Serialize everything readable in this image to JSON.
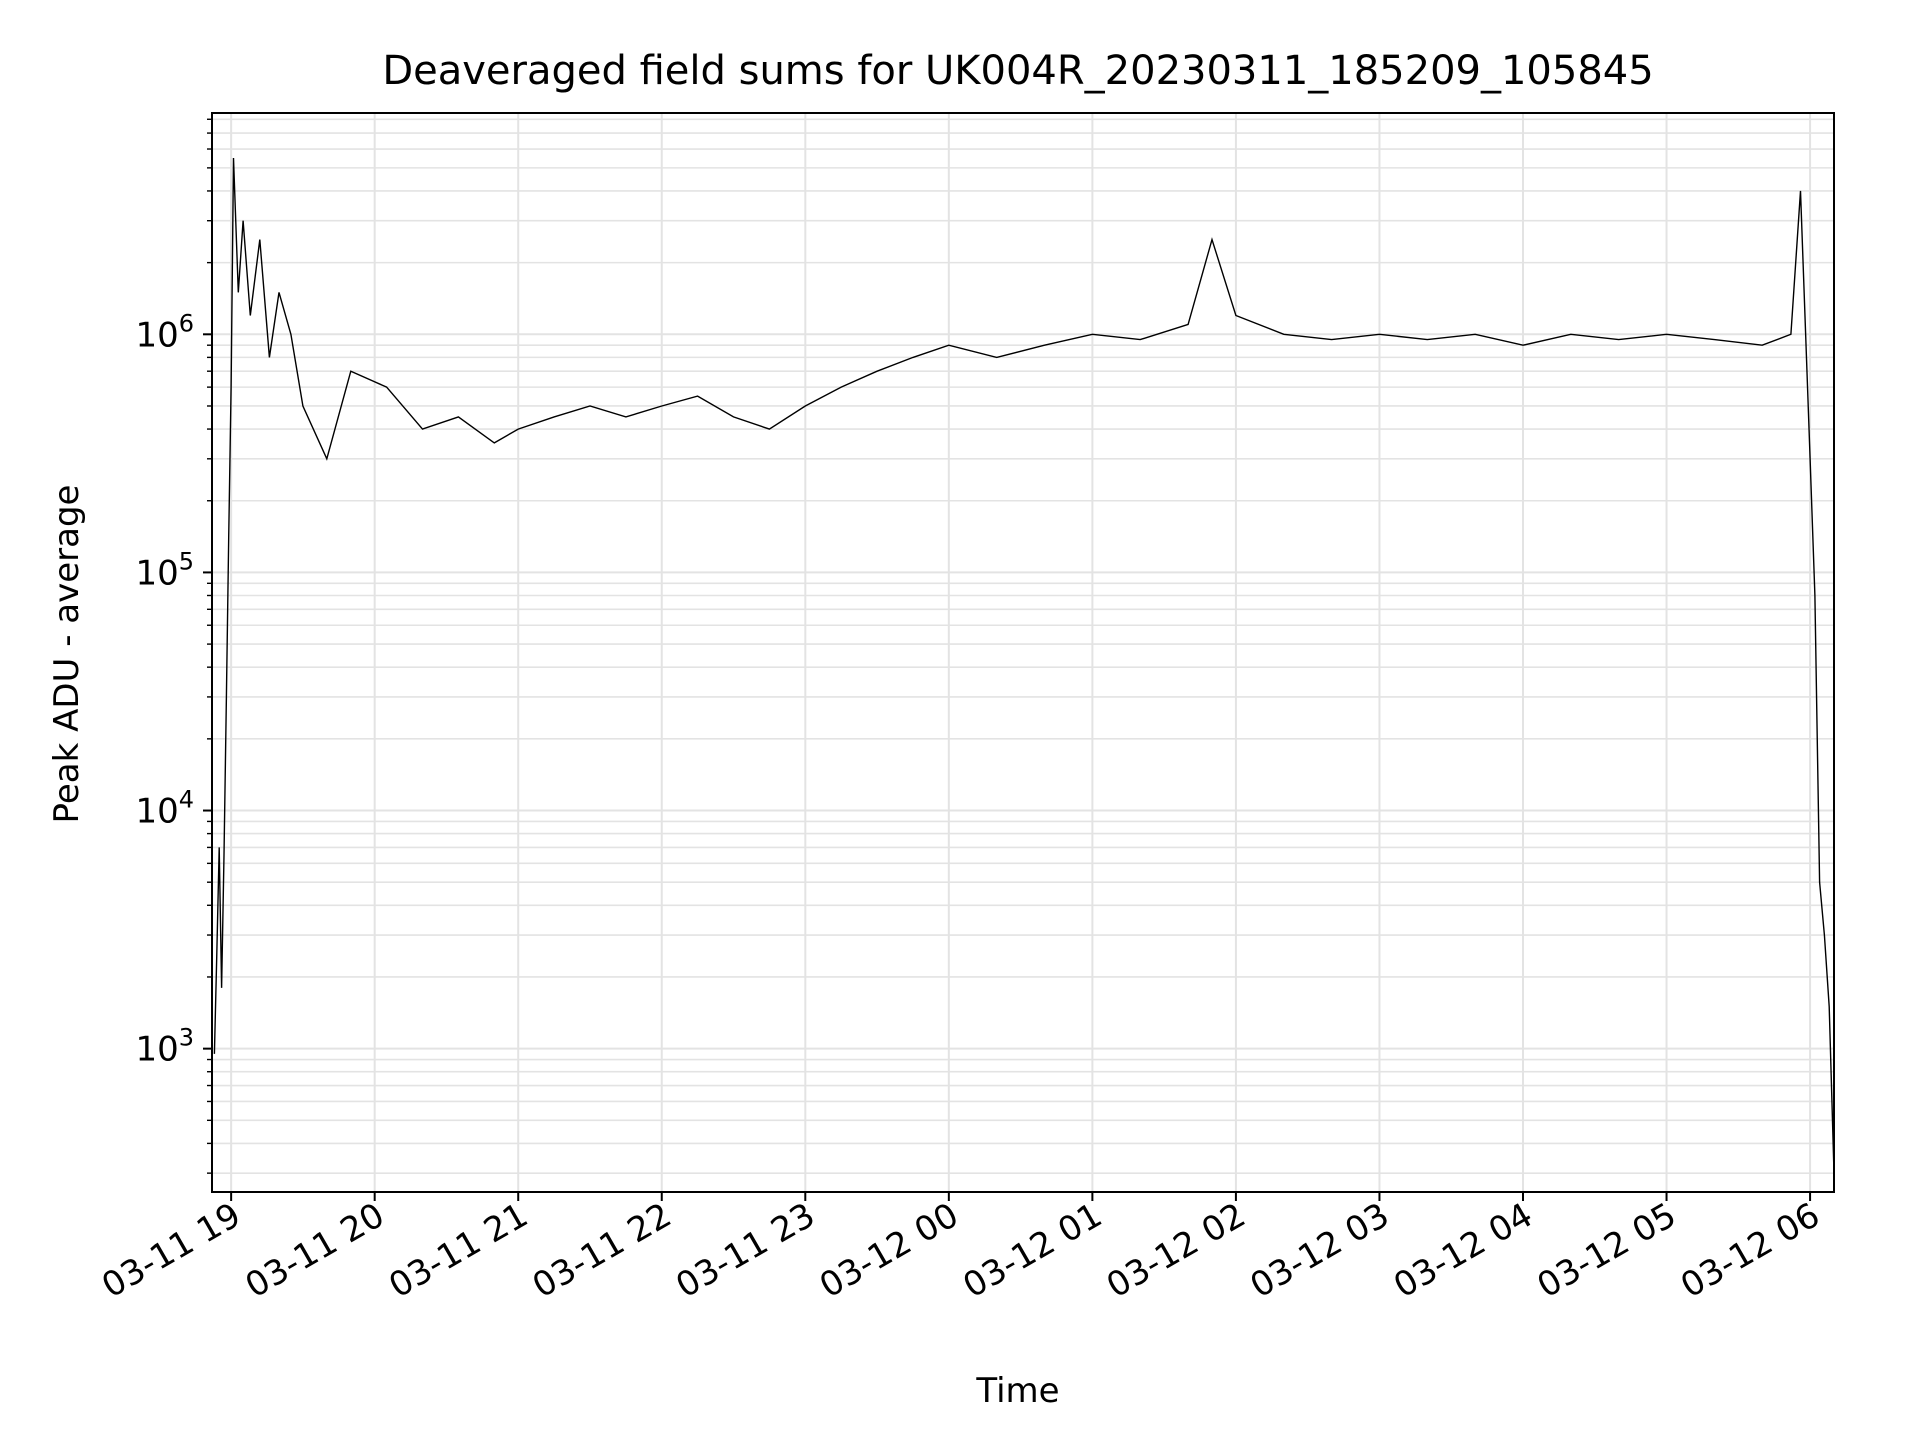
{
  "chart_data": {
    "type": "line",
    "title": "Deaveraged field sums for UK004R_20230311_185209_105845",
    "xlabel": "Time",
    "ylabel": "Peak ADU - average",
    "xlim": [
      "2023-03-11 18:52",
      "2023-03-12 06:10"
    ],
    "ylim": [
      250,
      8500000
    ],
    "y_scale": "log",
    "grid": true,
    "grid_which": "both",
    "legend": false,
    "line_color": "#000000",
    "x_ticks": [
      {
        "time": "2023-03-11 19:00",
        "label": "03-11 19"
      },
      {
        "time": "2023-03-11 20:00",
        "label": "03-11 20"
      },
      {
        "time": "2023-03-11 21:00",
        "label": "03-11 21"
      },
      {
        "time": "2023-03-11 22:00",
        "label": "03-11 22"
      },
      {
        "time": "2023-03-11 23:00",
        "label": "03-11 23"
      },
      {
        "time": "2023-03-12 00:00",
        "label": "03-12 00"
      },
      {
        "time": "2023-03-12 01:00",
        "label": "03-12 01"
      },
      {
        "time": "2023-03-12 02:00",
        "label": "03-12 02"
      },
      {
        "time": "2023-03-12 03:00",
        "label": "03-12 03"
      },
      {
        "time": "2023-03-12 04:00",
        "label": "03-12 04"
      },
      {
        "time": "2023-03-12 05:00",
        "label": "03-12 05"
      },
      {
        "time": "2023-03-12 06:00",
        "label": "03-12 06"
      }
    ],
    "y_ticks": [
      {
        "value": 1000,
        "base": "10",
        "exp": "3"
      },
      {
        "value": 10000,
        "base": "10",
        "exp": "4"
      },
      {
        "value": 100000,
        "base": "10",
        "exp": "5"
      },
      {
        "value": 1000000,
        "base": "10",
        "exp": "6"
      }
    ],
    "series": [
      {
        "x": [
          "2023-03-11 18:53",
          "2023-03-11 18:54",
          "2023-03-11 18:55",
          "2023-03-11 18:56",
          "2023-03-11 18:57",
          "2023-03-11 18:58",
          "2023-03-11 18:59",
          "2023-03-11 19:00",
          "2023-03-11 19:01",
          "2023-03-11 19:03",
          "2023-03-11 19:05",
          "2023-03-11 19:08",
          "2023-03-11 19:12",
          "2023-03-11 19:16",
          "2023-03-11 19:20",
          "2023-03-11 19:25",
          "2023-03-11 19:30",
          "2023-03-11 19:40",
          "2023-03-11 19:50",
          "2023-03-11 20:05",
          "2023-03-11 20:20",
          "2023-03-11 20:35",
          "2023-03-11 20:50",
          "2023-03-11 21:00",
          "2023-03-11 21:15",
          "2023-03-11 21:30",
          "2023-03-11 21:45",
          "2023-03-11 22:00",
          "2023-03-11 22:15",
          "2023-03-11 22:30",
          "2023-03-11 22:45",
          "2023-03-11 23:00",
          "2023-03-11 23:15",
          "2023-03-11 23:30",
          "2023-03-11 23:45",
          "2023-03-12 00:00",
          "2023-03-12 00:20",
          "2023-03-12 00:40",
          "2023-03-12 01:00",
          "2023-03-12 01:20",
          "2023-03-12 01:40",
          "2023-03-12 01:50",
          "2023-03-12 02:00",
          "2023-03-12 02:20",
          "2023-03-12 02:40",
          "2023-03-12 03:00",
          "2023-03-12 03:20",
          "2023-03-12 03:40",
          "2023-03-12 04:00",
          "2023-03-12 04:20",
          "2023-03-12 04:40",
          "2023-03-12 05:00",
          "2023-03-12 05:20",
          "2023-03-12 05:40",
          "2023-03-12 05:52",
          "2023-03-12 05:56",
          "2023-03-12 06:00",
          "2023-03-12 06:02",
          "2023-03-12 06:04",
          "2023-03-12 06:06",
          "2023-03-12 06:08",
          "2023-03-12 06:10"
        ],
        "values": [
          950,
          2500,
          7000,
          1800,
          6500,
          30000,
          140000,
          600000,
          5500000,
          1500000,
          3000000,
          1200000,
          2500000,
          800000,
          1500000,
          1000000,
          500000,
          300000,
          700000,
          600000,
          400000,
          450000,
          350000,
          400000,
          450000,
          500000,
          450000,
          500000,
          550000,
          450000,
          400000,
          500000,
          600000,
          700000,
          800000,
          900000,
          800000,
          900000,
          1000000,
          950000,
          1100000,
          2500000,
          1200000,
          1000000,
          950000,
          1000000,
          950000,
          1000000,
          900000,
          1000000,
          950000,
          1000000,
          950000,
          900000,
          1000000,
          4000000,
          300000,
          80000,
          5000,
          3000,
          1500,
          300
        ]
      }
    ]
  }
}
